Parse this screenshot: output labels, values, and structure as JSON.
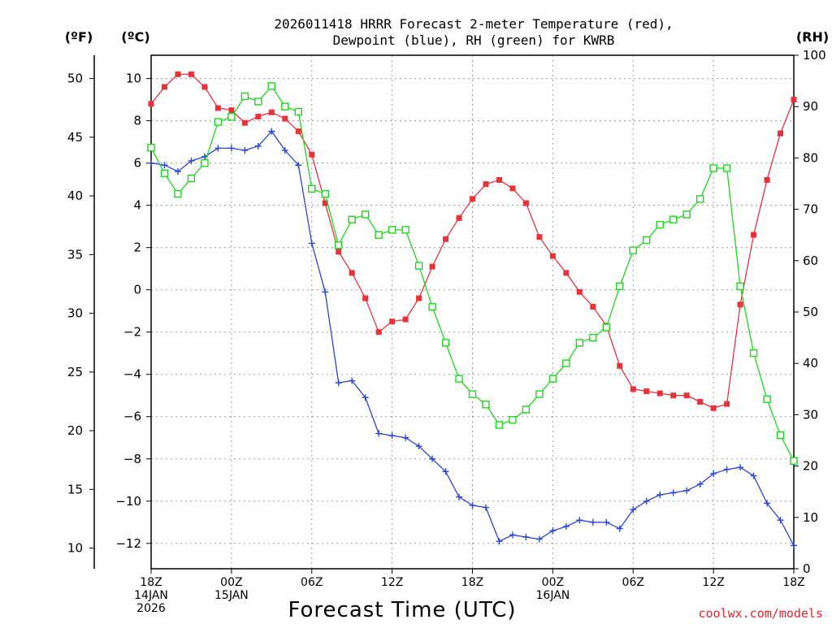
{
  "chart_data": {
    "type": "line",
    "title_line1": "2026011418 HRRR Forecast 2-meter Temperature (red),",
    "title_line2": "Dewpoint (blue), RH (green) for KWRB",
    "xlabel": "Forecast Time (UTC)",
    "credit": "coolwx.com/models",
    "axis_heads": {
      "left_f": "(ºF)",
      "left_c": "(ºC)",
      "right_rh": "(RH)"
    },
    "xlim": [
      0,
      48
    ],
    "c_lim": [
      -13.2,
      11.1
    ],
    "rh_lim": [
      0,
      100
    ],
    "c_ticks": [
      10,
      8,
      6,
      4,
      2,
      0,
      -2,
      -4,
      -6,
      -8,
      -10,
      -12
    ],
    "c_tick_labels": [
      "10",
      "8",
      "6",
      "4",
      "2",
      "0",
      "−2",
      "−4",
      "−6",
      "−8",
      "−10",
      "−12"
    ],
    "f_ticks": [
      50,
      45,
      40,
      35,
      30,
      25,
      20,
      15,
      10
    ],
    "f_tick_labels": [
      "50",
      "45",
      "40",
      "35",
      "30",
      "25",
      "20",
      "15",
      "10"
    ],
    "rh_ticks": [
      100,
      90,
      80,
      70,
      60,
      50,
      40,
      30,
      20,
      10,
      0
    ],
    "rh_tick_labels": [
      "100",
      "90",
      "80",
      "70",
      "60",
      "50",
      "40",
      "30",
      "20",
      "10",
      "0"
    ],
    "x_ticks": [
      {
        "hour": 0,
        "lines": [
          "18Z",
          "14JAN",
          "2026"
        ]
      },
      {
        "hour": 6,
        "lines": [
          "00Z",
          "15JAN"
        ]
      },
      {
        "hour": 12,
        "lines": [
          "06Z"
        ]
      },
      {
        "hour": 18,
        "lines": [
          "12Z"
        ]
      },
      {
        "hour": 24,
        "lines": [
          "18Z"
        ]
      },
      {
        "hour": 30,
        "lines": [
          "00Z",
          "16JAN"
        ]
      },
      {
        "hour": 36,
        "lines": [
          "06Z"
        ]
      },
      {
        "hour": 42,
        "lines": [
          "12Z"
        ]
      },
      {
        "hour": 48,
        "lines": [
          "18Z"
        ]
      }
    ],
    "series": [
      {
        "name": "Temperature",
        "unit": "C",
        "color": "#e8323a",
        "marker": "filled-square",
        "values": [
          8.8,
          9.6,
          10.2,
          10.2,
          9.6,
          8.6,
          8.5,
          7.9,
          8.2,
          8.4,
          8.1,
          7.5,
          6.4,
          4.1,
          1.8,
          0.8,
          -0.4,
          -2.0,
          -1.5,
          -1.4,
          -0.4,
          1.1,
          2.4,
          3.4,
          4.3,
          5.0,
          5.2,
          4.8,
          4.1,
          2.5,
          1.6,
          0.8,
          -0.1,
          -0.8,
          -1.7,
          -3.6,
          -4.7,
          -4.8,
          -4.9,
          -5.0,
          -5.0,
          -5.3,
          -5.6,
          -5.4,
          -0.7,
          2.6,
          5.2,
          7.4,
          9.0
        ]
      },
      {
        "name": "Dewpoint",
        "unit": "C",
        "color": "#2b45d8",
        "marker": "plus",
        "values": [
          6.0,
          5.9,
          5.6,
          6.1,
          6.3,
          6.7,
          6.7,
          6.6,
          6.8,
          7.5,
          6.6,
          5.9,
          2.2,
          -0.1,
          -4.4,
          -4.3,
          -5.1,
          -6.8,
          -6.9,
          -7.0,
          -7.4,
          -8.0,
          -8.6,
          -9.8,
          -10.2,
          -10.3,
          -11.9,
          -11.6,
          -11.7,
          -11.8,
          -11.4,
          -11.2,
          -10.9,
          -11.0,
          -11.0,
          -11.3,
          -10.4,
          -10.0,
          -9.7,
          -9.6,
          -9.5,
          -9.2,
          -8.7,
          -8.5,
          -8.4,
          -8.8,
          -10.1,
          -10.9,
          -12.1
        ]
      },
      {
        "name": "RH",
        "unit": "%",
        "color": "#1fd61f",
        "marker": "open-square",
        "values": [
          82,
          77,
          73,
          76,
          79,
          87,
          88,
          92,
          91,
          94,
          90,
          89,
          74,
          73,
          63,
          68,
          69,
          65,
          66,
          66,
          59,
          51,
          44,
          37,
          34,
          32,
          28,
          29,
          31,
          34,
          37,
          40,
          44,
          45,
          47,
          55,
          62,
          64,
          67,
          68,
          69,
          72,
          78,
          78,
          55,
          42,
          33,
          26,
          21
        ]
      }
    ]
  }
}
